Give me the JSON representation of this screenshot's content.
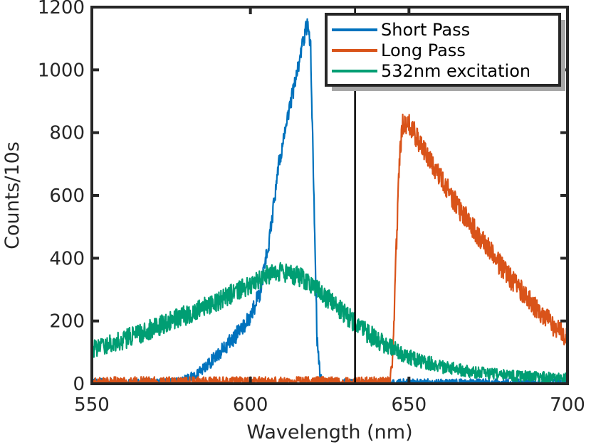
{
  "chart_data": {
    "type": "line",
    "title": "",
    "xlabel": "Wavelength (nm)",
    "ylabel": "Counts/10s",
    "xlim": [
      550,
      700
    ],
    "ylim": [
      0,
      1200
    ],
    "xticks": [
      550,
      600,
      650,
      700
    ],
    "yticks": [
      0,
      200,
      400,
      600,
      800,
      1000,
      1200
    ],
    "xtick_labels": [
      "550",
      "600",
      "650",
      "700"
    ],
    "ytick_labels": [
      "0",
      "200",
      "400",
      "600",
      "800",
      "1000",
      "1200"
    ],
    "grid": false,
    "legend_position": "top-right",
    "vertical_line_x": 633,
    "series": [
      {
        "name": "Short Pass",
        "color": "#0072BD",
        "noise": 28,
        "x": [
          550,
          575,
          580,
          585,
          590,
          595,
          600,
          603,
          606,
          609,
          612,
          614,
          616,
          617,
          618,
          619,
          620,
          621,
          622,
          623,
          625,
          630,
          650,
          676,
          700
        ],
        "values": [
          3,
          3,
          15,
          45,
          95,
          150,
          210,
          290,
          460,
          700,
          860,
          960,
          1050,
          1110,
          1150,
          1080,
          600,
          150,
          25,
          5,
          3,
          2,
          2,
          2,
          2
        ]
      },
      {
        "name": "Long Pass",
        "color": "#D95319",
        "noise": 35,
        "x": [
          550,
          600,
          630,
          644,
          645,
          646,
          647,
          648,
          650,
          655,
          660,
          665,
          670,
          675,
          680,
          685,
          690,
          695,
          700
        ],
        "values": [
          5,
          5,
          5,
          5,
          100,
          430,
          720,
          830,
          830,
          740,
          660,
          570,
          500,
          430,
          360,
          300,
          240,
          190,
          140
        ]
      },
      {
        "name": "532nm excitation",
        "color": "#009E73",
        "noise": 32,
        "x": [
          550,
          560,
          570,
          580,
          590,
          600,
          605,
          610,
          615,
          620,
          625,
          630,
          635,
          640,
          645,
          650,
          660,
          670,
          680,
          690,
          700
        ],
        "values": [
          110,
          140,
          180,
          220,
          265,
          315,
          345,
          355,
          345,
          310,
          265,
          220,
          175,
          140,
          110,
          85,
          55,
          38,
          28,
          22,
          20
        ]
      }
    ]
  }
}
